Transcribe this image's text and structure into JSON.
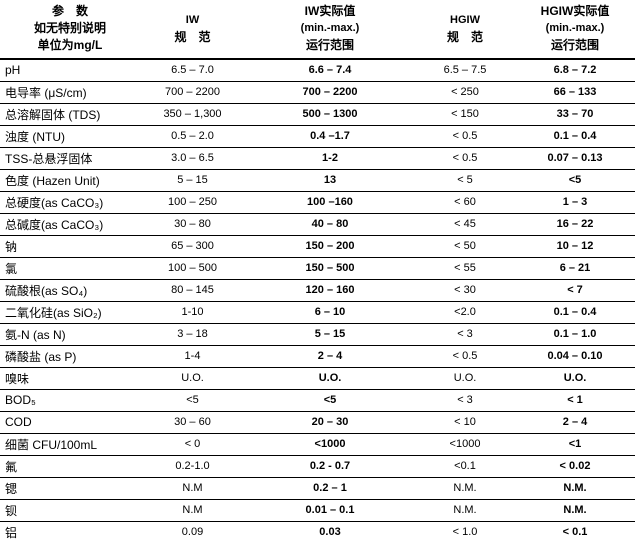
{
  "table": {
    "columns": [
      {
        "id": "param",
        "lines": [
          "参　数",
          "如无特别说明",
          "单位为mg/L"
        ]
      },
      {
        "id": "iw-spec",
        "lines": [
          "IW",
          "规　范"
        ]
      },
      {
        "id": "iw-actual",
        "lines": [
          "IW实际值",
          "(min.-max.)",
          "运行范围"
        ]
      },
      {
        "id": "hgiw-spec",
        "lines": [
          "HGIW",
          "规　范"
        ]
      },
      {
        "id": "hgiw-actual",
        "lines": [
          "HGIW实际值",
          "(min.-max.)",
          "运行范围"
        ]
      }
    ],
    "rows": [
      [
        "pH",
        "6.5 – 7.0",
        "6.6 – 7.4",
        "6.5 – 7.5",
        "6.8 – 7.2"
      ],
      [
        "电导率 (μS/cm)",
        "700 – 2200",
        "700 – 2200",
        "< 250",
        "66 – 133"
      ],
      [
        "总溶解固体 (TDS)",
        "350 – 1,300",
        "500 – 1300",
        "< 150",
        "33 – 70"
      ],
      [
        "浊度 (NTU)",
        "0.5 – 2.0",
        "0.4 –1.7",
        "< 0.5",
        "0.1 – 0.4"
      ],
      [
        "TSS-总悬浮固体",
        "3.0 – 6.5",
        "1-2",
        "< 0.5",
        "0.07 – 0.13"
      ],
      [
        "色度 (Hazen Unit)",
        "5 – 15",
        "13",
        "< 5",
        "<5"
      ],
      [
        "总硬度(as CaCO₃)",
        "100 – 250",
        "100 –160",
        "< 60",
        "1 – 3"
      ],
      [
        "总碱度(as CaCO₃)",
        "30 – 80",
        "40 – 80",
        "< 45",
        "16 – 22"
      ],
      [
        "钠",
        "65 – 300",
        "150 – 200",
        "< 50",
        "10 – 12"
      ],
      [
        "氯",
        "100 – 500",
        "150 – 500",
        "< 55",
        "6 – 21"
      ],
      [
        "硫酸根(as SO₄)",
        "80 – 145",
        "120 – 160",
        "< 30",
        "< 7"
      ],
      [
        "二氧化硅(as SiO₂)",
        "1-10",
        "6 – 10",
        "<2.0",
        "0.1 – 0.4"
      ],
      [
        "氨-N (as N)",
        "3 – 18",
        "5 – 15",
        "< 3",
        "0.1 – 1.0"
      ],
      [
        "磷酸盐 (as P)",
        "1-4",
        "2 – 4",
        "< 0.5",
        "0.04 – 0.10"
      ],
      [
        "嗅味",
        "U.O.",
        "U.O.",
        "U.O.",
        "U.O."
      ],
      [
        "BOD₅",
        "<5",
        "<5",
        "< 3",
        "< 1"
      ],
      [
        "COD",
        "30 – 60",
        "20 – 30",
        "< 10",
        "2 – 4"
      ],
      [
        "细菌 CFU/100mL",
        "< 0",
        "<1000",
        "<1000",
        "<1"
      ],
      [
        "氟",
        "0.2-1.0",
        "0.2 - 0.7",
        "<0.1",
        "< 0.02"
      ],
      [
        "锶",
        "N.M",
        "0.2 – 1",
        "N.M.",
        "N.M."
      ],
      [
        "钡",
        "N.M",
        "0.01 – 0.1",
        "N.M.",
        "N.M."
      ],
      [
        "铝",
        "0.09",
        "0.03",
        "< 1.0",
        "< 0.1"
      ]
    ]
  },
  "colors": {
    "text": "#000000",
    "background": "#ffffff",
    "border": "#000000"
  }
}
